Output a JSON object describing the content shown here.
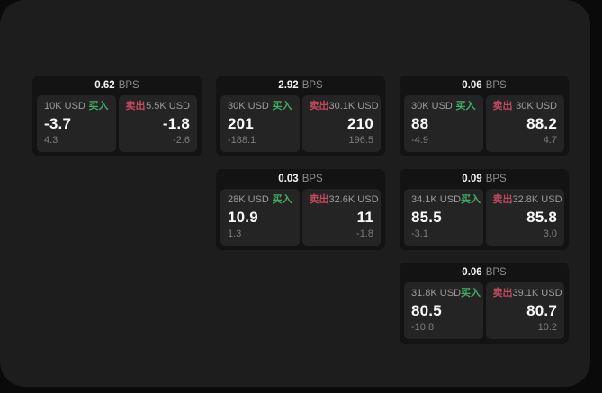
{
  "panel": {
    "bps_unit": "BPS",
    "buy_label": "买入",
    "sell_label": "卖出"
  },
  "colors": {
    "page_bg": "#0a0a0a",
    "panel_bg": "#1d1d1e",
    "card_bg": "#131314",
    "tile_bg": "#242425",
    "buy_green": "#43ab63",
    "sell_red": "#c2495d",
    "value_white": "#fafafa",
    "label_gray": "#9c9c9c",
    "delta_gray": "#7d7d7d"
  },
  "cards": [
    {
      "bps": "0.62",
      "buy": {
        "amount": "10K USD",
        "value": "-3.7",
        "delta": "4.3"
      },
      "sell": {
        "amount": "5.5K USD",
        "value": "-1.8",
        "delta": "-2.6"
      }
    },
    {
      "bps": "2.92",
      "buy": {
        "amount": "30K USD",
        "value": "201",
        "delta": "-188.1"
      },
      "sell": {
        "amount": "30.1K USD",
        "value": "210",
        "delta": "196.5"
      }
    },
    {
      "bps": "0.03",
      "buy": {
        "amount": "28K USD",
        "value": "10.9",
        "delta": "1.3"
      },
      "sell": {
        "amount": "32.6K USD",
        "value": "11",
        "delta": "-1.8"
      }
    },
    {
      "bps": "0.06",
      "buy": {
        "amount": "30K USD",
        "value": "88",
        "delta": "-4.9"
      },
      "sell": {
        "amount": "30K USD",
        "value": "88.2",
        "delta": "4.7"
      }
    },
    {
      "bps": "0.09",
      "buy": {
        "amount": "34.1K USD",
        "value": "85.5",
        "delta": "-3.1"
      },
      "sell": {
        "amount": "32.8K USD",
        "value": "85.8",
        "delta": "3.0"
      }
    },
    {
      "bps": "0.06",
      "buy": {
        "amount": "31.8K USD",
        "value": "80.5",
        "delta": "-10.8"
      },
      "sell": {
        "amount": "39.1K USD",
        "value": "80.7",
        "delta": "10.2"
      }
    }
  ]
}
